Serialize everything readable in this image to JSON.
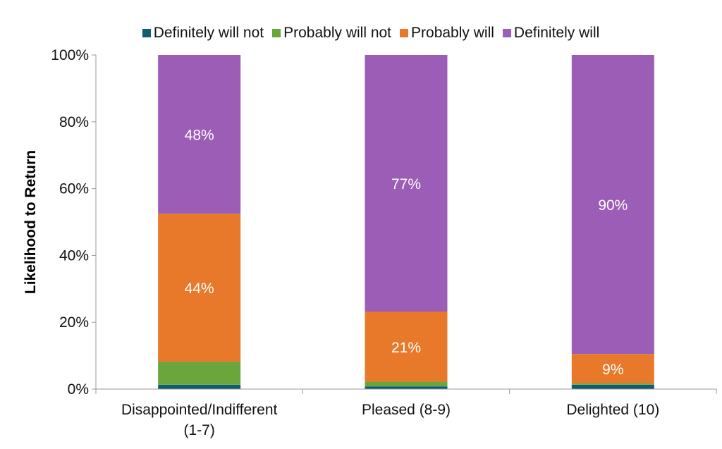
{
  "chart_data": {
    "type": "bar",
    "stacked": true,
    "percent": true,
    "title": "",
    "xlabel": "",
    "ylabel": "Likelihood to Return",
    "ylim": [
      0,
      100
    ],
    "yticks": [
      "0%",
      "20%",
      "40%",
      "60%",
      "80%",
      "100%"
    ],
    "categories": [
      [
        "Disappointed/Indifferent",
        "(1-7)"
      ],
      [
        "Pleased (8-9)"
      ],
      [
        "Delighted (10)"
      ]
    ],
    "legend_position": "top",
    "series": [
      {
        "name": "Definitely will not",
        "color": "#0f5d73",
        "values": [
          1.3,
          0.8,
          1.3
        ],
        "labels": [
          "",
          "",
          ""
        ]
      },
      {
        "name": "Probably will not",
        "color": "#6aa63b",
        "values": [
          6.9,
          1.4,
          0.4
        ],
        "labels": [
          "",
          "",
          ""
        ]
      },
      {
        "name": "Probably will",
        "color": "#e8792a",
        "values": [
          44.3,
          21.0,
          8.8
        ],
        "labels": [
          "44%",
          "21%",
          "9%"
        ]
      },
      {
        "name": "Definitely will",
        "color": "#9b5db5",
        "values": [
          47.5,
          76.8,
          89.5
        ],
        "labels": [
          "48%",
          "77%",
          "90%"
        ]
      }
    ]
  }
}
